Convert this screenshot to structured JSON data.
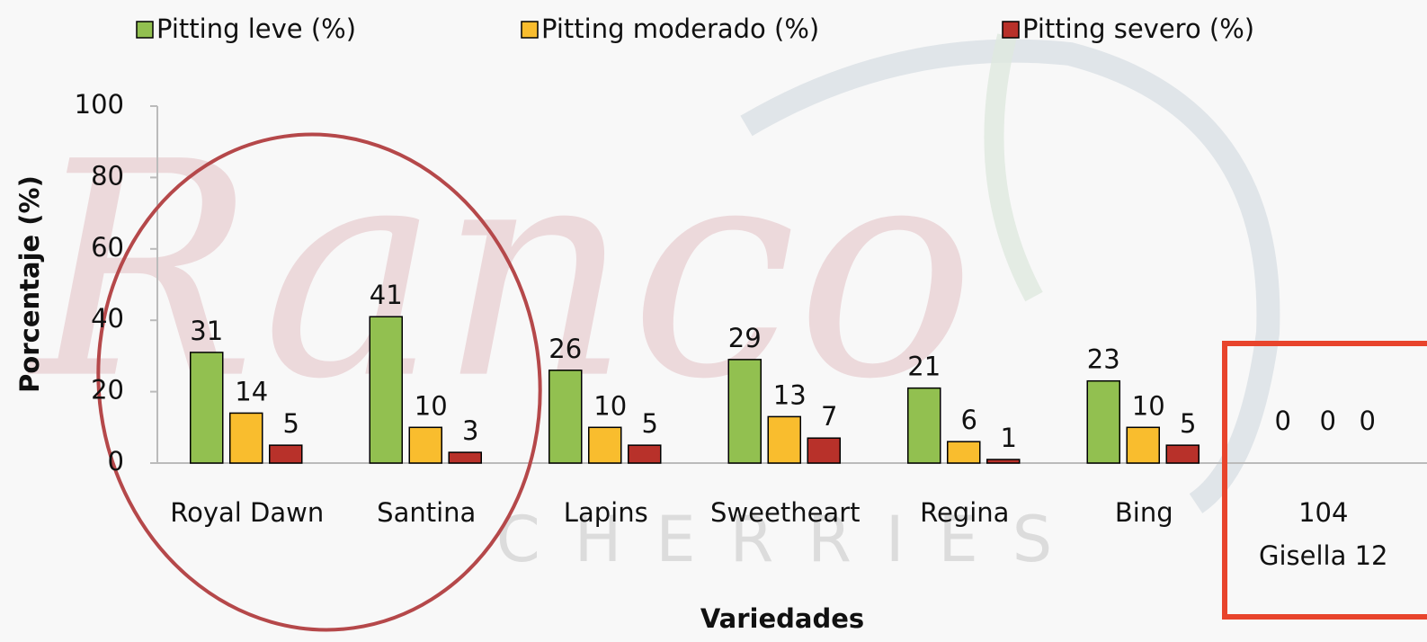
{
  "chart_data": {
    "type": "bar",
    "watermark": [
      "Ranco",
      "CHERRIES"
    ],
    "x_label": "Variedades",
    "y_label": "Porcentaje (%)",
    "categories": [
      "Royal Dawn",
      "Santina",
      "Lapins",
      "Sweetheart",
      "Regina",
      "Bing",
      "104 Gisella 12"
    ],
    "series": [
      {
        "name": "Pitting leve (%)",
        "color": "#92c050",
        "values": [
          31,
          41,
          26,
          29,
          21,
          23,
          0
        ]
      },
      {
        "name": "Pitting moderado (%)",
        "color": "#f9bd2e",
        "values": [
          14,
          10,
          10,
          13,
          6,
          10,
          0
        ]
      },
      {
        "name": "Pitting severo (%)",
        "color": "#b8312a",
        "values": [
          5,
          3,
          5,
          7,
          1,
          5,
          0
        ]
      }
    ],
    "ylim": [
      0,
      100
    ],
    "yticks": [
      0,
      20,
      40,
      60,
      80,
      100
    ],
    "grid": false,
    "legend": "top"
  }
}
